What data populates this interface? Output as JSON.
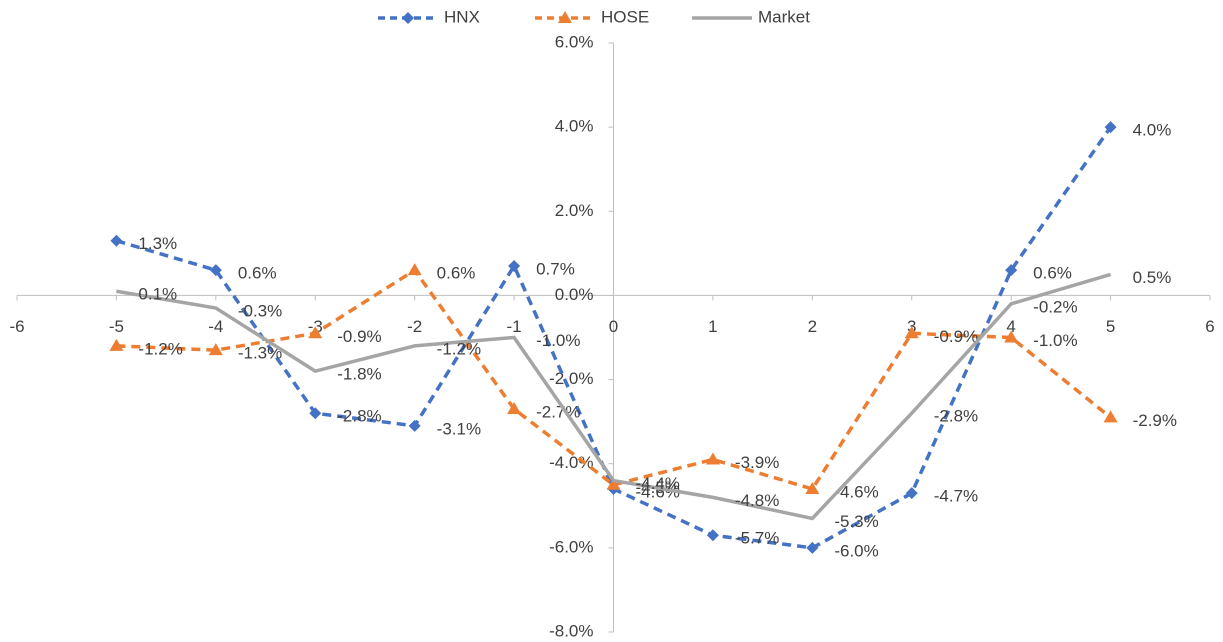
{
  "chart_data": {
    "type": "line",
    "x": [
      -5,
      -4,
      -3,
      -2,
      -1,
      0,
      1,
      2,
      3,
      4,
      5
    ],
    "series": [
      {
        "name": "HNX",
        "color": "#4472c4",
        "dash": true,
        "marker": "diamond",
        "values": [
          1.3,
          0.6,
          -2.8,
          -3.1,
          0.7,
          -4.6,
          -5.7,
          -6.0,
          -4.7,
          0.6,
          4.0
        ],
        "value_labels": [
          "1.3%",
          "0.6%",
          "-2.8%",
          "-3.1%",
          "0.7%",
          "-4.6%",
          "-5.7%",
          "-6.0%",
          "-4.7%",
          "0.6%",
          "4.0%"
        ]
      },
      {
        "name": "HOSE",
        "color": "#ed7d31",
        "dash": true,
        "marker": "triangle",
        "values": [
          -1.2,
          -1.3,
          -0.9,
          0.6,
          -2.7,
          -4.5,
          -3.9,
          -4.6,
          -0.9,
          -1.0,
          -2.9
        ],
        "value_labels": [
          "-1.2%",
          "-1.3%",
          "-0.9%",
          "0.6%",
          "-2.7%",
          "-4.5%",
          "-3.9%",
          "-4.6%",
          "-0.9%",
          "-1.0%",
          "-2.9%"
        ]
      },
      {
        "name": "Market",
        "color": "#a5a5a5",
        "dash": false,
        "marker": "none",
        "values": [
          0.1,
          -0.3,
          -1.8,
          -1.2,
          -1.0,
          -4.4,
          -4.8,
          -5.3,
          -2.8,
          -0.2,
          0.5
        ],
        "value_labels": [
          "0.1%",
          "-0.3%",
          "-1.8%",
          "-1.2%",
          "-1.0%",
          "-4.4%",
          "-4.8%",
          "-5.3%",
          "-2.8%",
          "-0.2%",
          "0.5%"
        ]
      }
    ],
    "xlim": [
      -6,
      6
    ],
    "xticks": [
      -6,
      -5,
      -4,
      -3,
      -2,
      -1,
      0,
      1,
      2,
      3,
      4,
      5,
      6
    ],
    "ylim": [
      -8,
      6
    ],
    "yticks": [
      {
        "value": -8,
        "label": "-8.0%"
      },
      {
        "value": -6,
        "label": "-6.0%"
      },
      {
        "value": -4,
        "label": "-4.0%"
      },
      {
        "value": -2,
        "label": "-2.0%"
      },
      {
        "value": 0,
        "label": "0.0%"
      },
      {
        "value": 2,
        "label": "2.0%"
      },
      {
        "value": 4,
        "label": "4.0%"
      },
      {
        "value": 6,
        "label": "6.0%"
      }
    ],
    "grid": false,
    "legend": "top"
  }
}
